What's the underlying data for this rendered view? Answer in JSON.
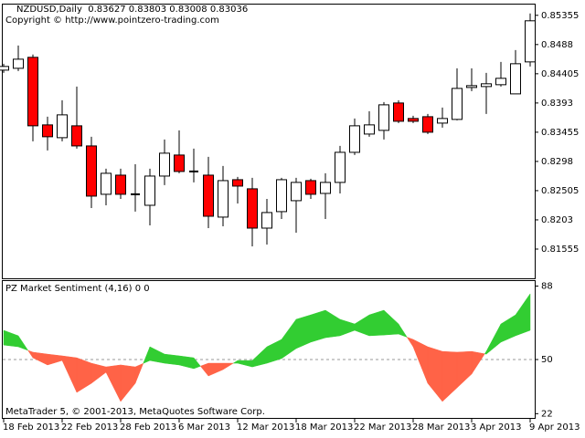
{
  "chart_data": [
    {
      "type": "candlestick",
      "title": "NZDUSD,Daily  0.83627 0.83803 0.83008 0.83036",
      "subtitle": "Copyright © http://www.pointzero-trading.com",
      "categories": [
        "18 Feb 2013",
        null,
        null,
        null,
        "22 Feb 2013",
        null,
        null,
        null,
        "28 Feb 2013",
        null,
        null,
        null,
        "6 Mar 2013",
        null,
        null,
        null,
        "12 Mar 2013",
        null,
        null,
        null,
        "18 Mar 2013",
        null,
        null,
        null,
        "22 Mar 2013",
        null,
        null,
        null,
        "28 Mar 2013",
        null,
        null,
        null,
        "3 Apr 2013",
        null,
        null,
        null,
        "9 Apr 2013"
      ],
      "open": [
        0.84464,
        0.84494,
        0.84672,
        0.83574,
        0.83366,
        0.83559,
        0.83232,
        0.82446,
        0.82757,
        0.82446,
        0.82267,
        0.82742,
        0.83084,
        0.82817,
        0.82757,
        0.82075,
        0.82683,
        0.82535,
        0.81896,
        0.82164,
        0.82342,
        0.82668,
        0.8246,
        0.82639,
        0.83128,
        0.83425,
        0.83485,
        0.8393,
        0.83678,
        0.83707,
        0.83603,
        0.83663,
        0.84182,
        0.84197,
        0.84227,
        0.84078,
        0.84598
      ],
      "high": [
        0.84568,
        0.84865,
        0.84717,
        0.83707,
        0.83974,
        0.84197,
        0.83381,
        0.82861,
        0.82861,
        0.82935,
        0.82861,
        0.83336,
        0.83485,
        0.83188,
        0.83054,
        0.82906,
        0.82728,
        0.82713,
        0.82371,
        0.82713,
        0.82713,
        0.82698,
        0.82787,
        0.83232,
        0.83678,
        0.83796,
        0.83945,
        0.83974,
        0.83722,
        0.83752,
        0.83856,
        0.84494,
        0.84494,
        0.8442,
        0.84598,
        0.84791,
        0.85385
      ],
      "low": [
        0.8442,
        0.84449,
        0.83306,
        0.83158,
        0.83306,
        0.83188,
        0.82223,
        0.82267,
        0.82371,
        0.82164,
        0.81941,
        0.82594,
        0.82787,
        0.82639,
        0.81896,
        0.81926,
        0.82297,
        0.816,
        0.81629,
        0.82045,
        0.81822,
        0.82371,
        0.82045,
        0.8246,
        0.83084,
        0.83381,
        0.83336,
        0.83603,
        0.83603,
        0.83425,
        0.83529,
        0.83648,
        0.84123,
        0.83752,
        0.84197,
        0.84078,
        0.84524
      ],
      "close": [
        0.84524,
        0.84642,
        0.83559,
        0.83381,
        0.83737,
        0.83232,
        0.82416,
        0.82787,
        0.82446,
        0.82446,
        0.82742,
        0.83114,
        0.82817,
        0.82817,
        0.82089,
        0.82668,
        0.82579,
        0.81896,
        0.82149,
        0.82683,
        0.82639,
        0.82446,
        0.82639,
        0.83128,
        0.83559,
        0.83574,
        0.839,
        0.83633,
        0.83633,
        0.83455,
        0.83678,
        0.84167,
        0.84212,
        0.84242,
        0.84331,
        0.84568,
        0.85266
      ],
      "up_color": "#ffffff",
      "down_color": "#ff0000",
      "ylim": [
        0.8108,
        0.8553
      ],
      "yticks": [
        0.85355,
        0.8488,
        0.84405,
        0.8393,
        0.83455,
        0.8298,
        0.82505,
        0.8203,
        0.81555
      ]
    },
    {
      "type": "band",
      "title": "PZ Market Sentiment (4,16) 0 0",
      "footer": "MetaTrader 5, © 2001-2013, MetaQuotes Software Corp.",
      "series": [
        {
          "values": [
            65.1,
            62.3,
            50.9,
            47.2,
            49.5,
            33.0,
            37.7,
            43.4,
            28.3,
            37.7,
            56.6,
            52.8,
            51.9,
            50.9,
            41.5,
            44.8,
            49.5,
            49.5,
            56.6,
            60.4,
            70.8,
            73.1,
            75.5,
            70.8,
            68.4,
            73.1,
            75.5,
            68.4,
            56.6,
            37.7,
            28.3,
            35.4,
            42.5,
            54.2,
            68.4,
            73.1,
            84.0
          ]
        },
        {
          "values": [
            57.5,
            56.6,
            53.8,
            52.8,
            51.9,
            50.9,
            48.1,
            46.2,
            47.2,
            46.2,
            49.5,
            48.1,
            47.2,
            45.3,
            48.1,
            48.1,
            48.1,
            46.2,
            48.1,
            50.5,
            55.7,
            59.0,
            61.3,
            62.3,
            65.1,
            62.3,
            62.7,
            63.2,
            60.4,
            56.6,
            54.2,
            53.8,
            54.2,
            52.8,
            59.0,
            62.3,
            65.1
          ]
        }
      ],
      "fill_colors": [
        "#32cd32",
        "#ff6347"
      ],
      "level": 50,
      "ylim": [
        19.8,
        90.6
      ],
      "yticks": [
        88,
        50,
        22
      ]
    }
  ]
}
